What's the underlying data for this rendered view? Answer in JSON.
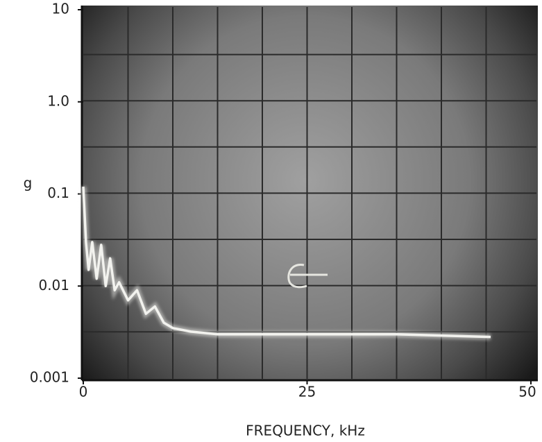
{
  "chart_data": {
    "type": "line",
    "x_label": "FREQUENCY, kHz",
    "y_label": "g",
    "ylog": true,
    "xlim": [
      0,
      50
    ],
    "xticks": [
      0,
      25,
      50
    ],
    "ylim": [
      0.001,
      10
    ],
    "yticks": [
      0.001,
      0.01,
      0.1,
      {
        "value": 1,
        "label": "1.0"
      },
      10
    ],
    "series": [
      {
        "color": "#f2f2ee",
        "x": [
          0,
          0.3,
          0.6,
          1,
          1.5,
          2,
          2.5,
          3,
          3.5,
          4,
          5,
          6,
          7,
          8,
          9,
          10,
          12,
          15,
          20,
          25,
          30,
          35,
          40,
          45.5
        ],
        "values": [
          0.12,
          0.03,
          0.015,
          0.03,
          0.012,
          0.028,
          0.01,
          0.02,
          0.009,
          0.011,
          0.007,
          0.009,
          0.005,
          0.006,
          0.004,
          0.0035,
          0.0032,
          0.003,
          0.003,
          0.003,
          0.003,
          0.003,
          0.0029,
          0.0028
        ]
      }
    ]
  }
}
